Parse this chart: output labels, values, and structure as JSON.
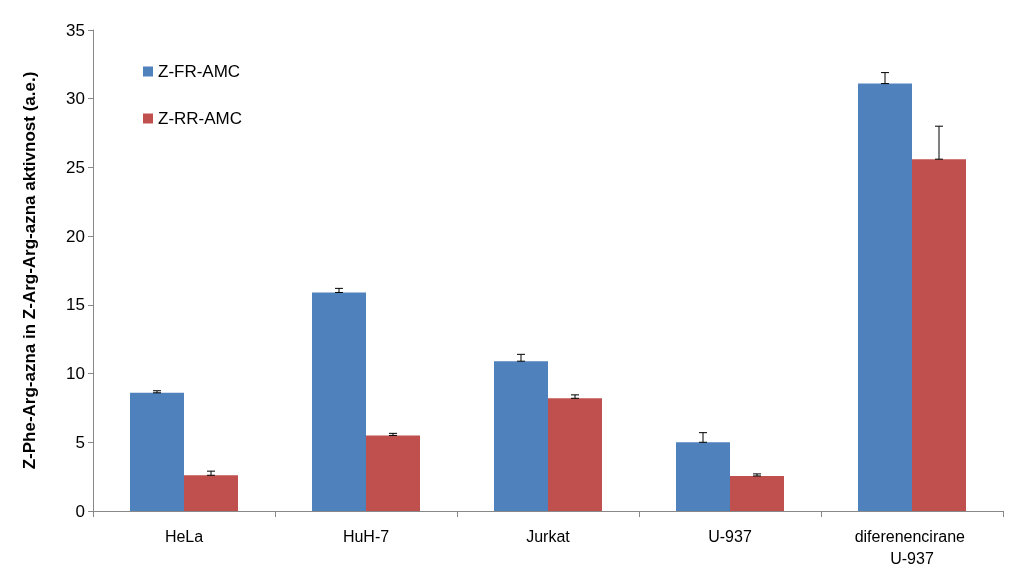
{
  "chart_data": {
    "type": "bar",
    "ylabel": "Z-Phe-Arg-azna in Z-Arg-Arg-azna aktivnost (a.e.)",
    "categories": [
      "HeLa",
      "HuH-7",
      "Jurkat",
      "U-937",
      "diferenencirane U-937"
    ],
    "series": [
      {
        "name": "Z-FR-AMC",
        "color": "#4f81bd",
        "values": [
          8.6,
          15.9,
          10.9,
          5.0,
          31.1
        ],
        "errors": [
          [
            8.6,
            8.75
          ],
          [
            15.9,
            16.2
          ],
          [
            10.9,
            11.4
          ],
          [
            5.0,
            5.7
          ],
          [
            31.1,
            31.9
          ]
        ]
      },
      {
        "name": "Z-RR-AMC",
        "color": "#c0504d",
        "values": [
          2.6,
          5.5,
          8.2,
          2.55,
          25.6
        ],
        "errors": [
          [
            2.6,
            2.9
          ],
          [
            5.5,
            5.65
          ],
          [
            8.2,
            8.45
          ],
          [
            2.55,
            2.7
          ],
          [
            25.6,
            28.0
          ]
        ]
      }
    ],
    "ylim": [
      0,
      35
    ],
    "yticks": [
      0,
      5,
      10,
      15,
      20,
      25,
      30,
      35
    ],
    "grid": false,
    "legend": "top left"
  }
}
